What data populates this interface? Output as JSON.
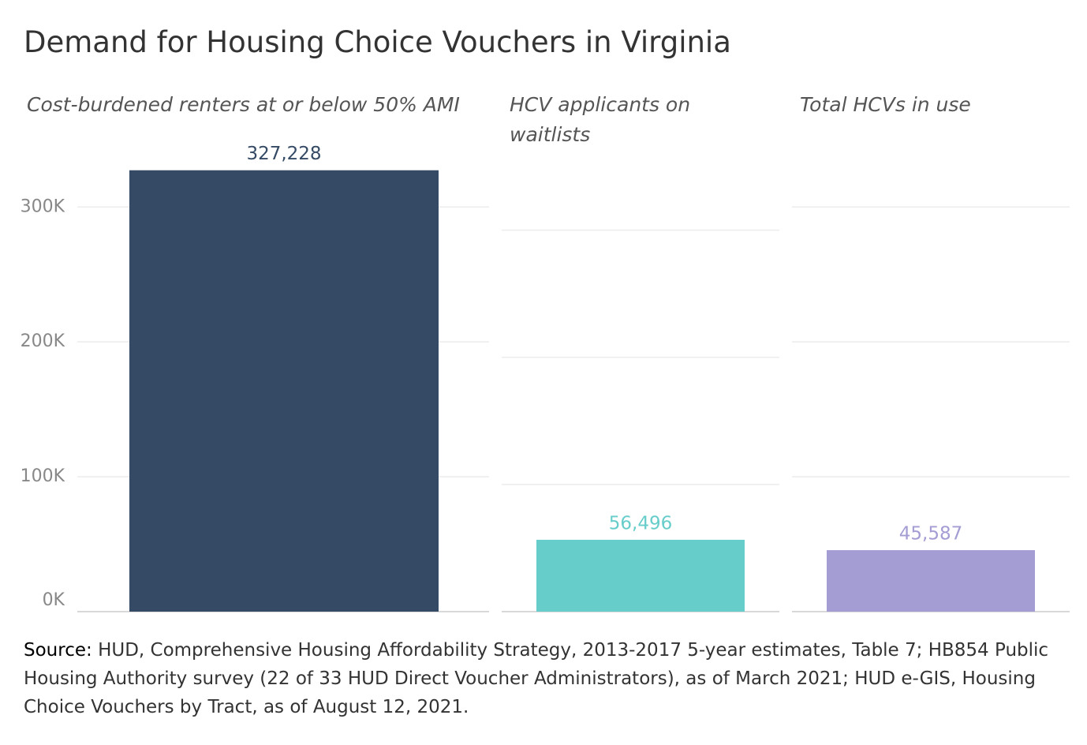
{
  "title": "Demand for Housing Choice Vouchers in Virginia",
  "source": {
    "label": "Source:",
    "text": "HUD, Comprehensive Housing Affordability Strategy, 2013-2017 5-year estimates, Table 7; HB854 Public Housing Authority survey (22 of 33 HUD Direct Voucher Administrators), as of March 2021; HUD e-GIS, Housing Choice Vouchers by Tract, as of August 12, 2021."
  },
  "chart_data": [
    {
      "type": "bar",
      "title": "Cost-burdened renters at or below 50% AMI",
      "categories": [
        null
      ],
      "values": [
        327228
      ],
      "value_labels": [
        "327,228"
      ],
      "color": "#354a65",
      "ylim": [
        0,
        330000
      ],
      "yticks": [
        {
          "value": 0,
          "label": "0K"
        },
        {
          "value": 100000,
          "label": "100K"
        },
        {
          "value": 200000,
          "label": "200K"
        },
        {
          "value": 300000,
          "label": "300K"
        }
      ],
      "grid": true,
      "show_axis": true
    },
    {
      "type": "bar",
      "title": "HCV applicants on waitlists",
      "categories": [
        null
      ],
      "values": [
        56496
      ],
      "value_labels": [
        "56,496"
      ],
      "color": "#66cdca",
      "ylim": [
        0,
        350000
      ],
      "yticks": [
        0,
        100000,
        200000,
        300000
      ],
      "grid": true,
      "show_axis": false
    },
    {
      "type": "bar",
      "title": "Total HCVs in use",
      "categories": [
        null
      ],
      "values": [
        45587
      ],
      "value_labels": [
        "45,587"
      ],
      "color": "#a39dd4",
      "ylim": [
        0,
        330000
      ],
      "yticks": [
        0,
        100000,
        200000,
        300000
      ],
      "grid": true,
      "show_axis": false
    }
  ]
}
